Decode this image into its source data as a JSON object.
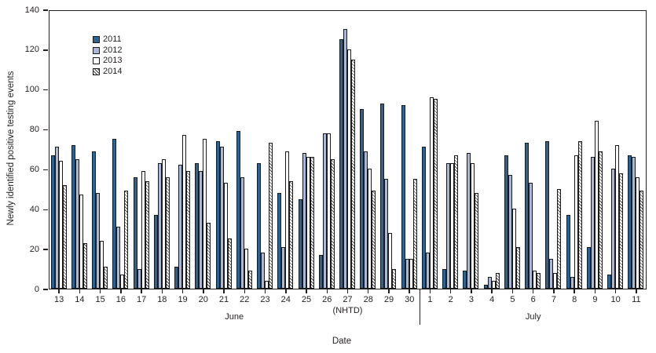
{
  "chart_data": {
    "type": "bar",
    "title": "",
    "ylabel": "Newly identified positive testing events",
    "xlabel": "Date",
    "ylim": [
      0,
      140
    ],
    "yticks": [
      0,
      20,
      40,
      60,
      80,
      100,
      120,
      140
    ],
    "grid": false,
    "legend_position": "upper-left-inside",
    "categories": [
      "13",
      "14",
      "15",
      "16",
      "17",
      "18",
      "19",
      "20",
      "21",
      "22",
      "23",
      "24",
      "25",
      "26",
      "27",
      "28",
      "29",
      "30",
      "1",
      "2",
      "3",
      "4",
      "5",
      "6",
      "7",
      "8",
      "9",
      "10",
      "11"
    ],
    "month_sections": [
      {
        "label": "June",
        "first_category": "13",
        "last_category": "30"
      },
      {
        "label": "July",
        "first_category": "1",
        "last_category": "11"
      }
    ],
    "annotation": {
      "text": "(NHTD)",
      "category": "27"
    },
    "series": [
      {
        "name": "2011",
        "style": "solid-dark-blue",
        "color": "#2a6496",
        "values": [
          67,
          72,
          69,
          75,
          56,
          37,
          11,
          63,
          74,
          79,
          63,
          48,
          45,
          17,
          125,
          90,
          93,
          92,
          71,
          10,
          9,
          2,
          67,
          73,
          74,
          37,
          21,
          7,
          67
        ]
      },
      {
        "name": "2012",
        "style": "solid-light-blue",
        "color": "#aab7d6",
        "values": [
          71,
          65,
          48,
          31,
          10,
          63,
          62,
          59,
          71,
          56,
          18,
          21,
          68,
          78,
          130,
          69,
          55,
          15,
          18,
          63,
          68,
          6,
          57,
          53,
          15,
          6,
          66,
          60,
          66
        ]
      },
      {
        "name": "2013",
        "style": "white",
        "color": "#ffffff",
        "values": [
          64,
          47,
          24,
          7,
          59,
          65,
          77,
          75,
          53,
          20,
          4,
          69,
          66,
          78,
          120,
          60,
          28,
          15,
          96,
          63,
          63,
          4,
          40,
          9,
          8,
          67,
          84,
          72,
          56
        ]
      },
      {
        "name": "2014",
        "style": "diagonal-hatch",
        "color": "#ffffff",
        "values": [
          52,
          23,
          11,
          49,
          54,
          56,
          59,
          33,
          25,
          9,
          73,
          54,
          66,
          65,
          115,
          49,
          10,
          55,
          95,
          67,
          48,
          8,
          21,
          8,
          50,
          74,
          69,
          58,
          49
        ]
      }
    ]
  }
}
